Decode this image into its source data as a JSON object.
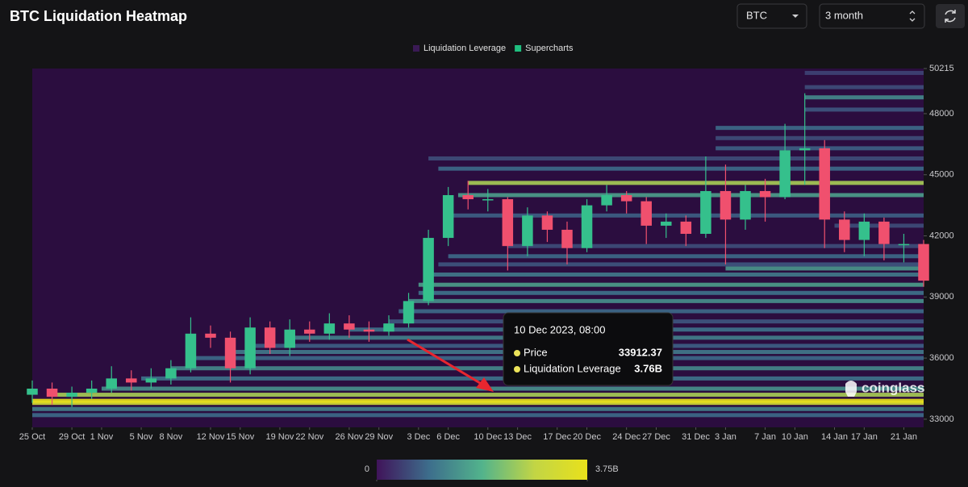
{
  "header": {
    "title": "BTC Liquidation Heatmap",
    "symbol": "BTC",
    "range": "3 month"
  },
  "tooltip": {
    "time": "10 Dec 2023, 08:00",
    "items": [
      {
        "name": "Price",
        "value": 33912.37
      },
      {
        "name": "Liquidation Leverage",
        "value": 3760000000,
        "value_label": "3.76B"
      }
    ]
  },
  "watermark": "coinglass",
  "chart_data": {
    "type": "heatmap",
    "legend": [
      {
        "name": "Liquidation Leverage",
        "color": "#3a1a55"
      },
      {
        "name": "Supercharts",
        "color": "#1fbf7f"
      }
    ],
    "background": "#2b0d3f",
    "xlim": [
      "25 Oct",
      "23 Jan"
    ],
    "xticks": [
      "25 Oct",
      "29 Oct",
      "1 Nov",
      "5 Nov",
      "8 Nov",
      "12 Nov",
      "15 Nov",
      "19 Nov",
      "22 Nov",
      "26 Nov",
      "29 Nov",
      "3 Dec",
      "6 Dec",
      "10 Dec",
      "13 Dec",
      "17 Dec",
      "20 Dec",
      "24 Dec",
      "27 Dec",
      "31 Dec",
      "3 Jan",
      "7 Jan",
      "10 Jan",
      "14 Jan",
      "17 Jan",
      "21 Jan"
    ],
    "ylim": [
      32600,
      50215
    ],
    "yticks": [
      33000,
      36000,
      39000,
      42000,
      45000,
      48000,
      50215
    ],
    "colorscale": [
      "#40145a",
      "#3d6e8c",
      "#52b38c",
      "#c2d545",
      "#e9e11b"
    ],
    "colorbar": {
      "ticks": [
        0,
        {
          "value": 3750000000,
          "label": "3.75B"
        }
      ]
    },
    "heatmap": {
      "price": [
        33200,
        33500,
        33800,
        33900,
        34200,
        34500,
        35000,
        35500,
        36000,
        36300,
        36600,
        37000,
        37400,
        37800,
        38300,
        38800,
        39200,
        39600,
        40100,
        40400,
        40600,
        41000,
        41500,
        42500,
        43000,
        44000,
        44600,
        45300,
        45800,
        46300,
        46800,
        47300,
        48200,
        48800,
        49300,
        50000
      ],
      "from": [
        "25 Oct",
        "25 Oct",
        "25 Oct",
        "25 Oct",
        "27 Oct",
        "1 Nov",
        "5 Nov",
        "8 Nov",
        "10 Nov",
        "14 Nov",
        "16 Nov",
        "20 Nov",
        "26 Nov",
        "30 Nov",
        "1 Dec",
        "2 Dec",
        "3 Dec",
        "3 Dec",
        "4 Dec",
        "3 Jan",
        "5 Dec",
        "6 Dec",
        "12 Dec",
        "14 Jan",
        "6 Dec",
        "7 Dec",
        "8 Dec",
        "5 Dec",
        "4 Dec",
        "2 Jan",
        "2 Jan",
        "2 Jan",
        "11 Jan",
        "11 Jan",
        "11 Jan",
        "11 Jan"
      ],
      "value": [
        900000000,
        1200000000,
        3200000000,
        3700000000,
        2600000000,
        1400000000,
        1000000000,
        1300000000,
        900000000,
        1100000000,
        800000000,
        1200000000,
        1000000000,
        700000000,
        900000000,
        1400000000,
        1000000000,
        1600000000,
        1100000000,
        1500000000,
        700000000,
        900000000,
        600000000,
        600000000,
        800000000,
        1600000000,
        2600000000,
        900000000,
        600000000,
        800000000,
        600000000,
        900000000,
        700000000,
        1300000000,
        600000000,
        500000000
      ]
    },
    "candles": {
      "up_color": "#35c08c",
      "down_color": "#f0506e",
      "x": [
        "25 Oct",
        "27 Oct",
        "29 Oct",
        "31 Oct",
        "2 Nov",
        "4 Nov",
        "6 Nov",
        "8 Nov",
        "10 Nov",
        "12 Nov",
        "14 Nov",
        "16 Nov",
        "18 Nov",
        "20 Nov",
        "22 Nov",
        "24 Nov",
        "26 Nov",
        "28 Nov",
        "30 Nov",
        "2 Dec",
        "4 Dec",
        "6 Dec",
        "8 Dec",
        "10 Dec",
        "12 Dec",
        "14 Dec",
        "16 Dec",
        "18 Dec",
        "20 Dec",
        "22 Dec",
        "24 Dec",
        "26 Dec",
        "28 Dec",
        "30 Dec",
        "1 Jan",
        "3 Jan",
        "5 Jan",
        "7 Jan",
        "9 Jan",
        "11 Jan",
        "13 Jan",
        "15 Jan",
        "17 Jan",
        "19 Jan",
        "21 Jan",
        "23 Jan"
      ],
      "open": [
        34200,
        34500,
        34100,
        34300,
        34500,
        35000,
        34800,
        35000,
        35500,
        37200,
        37000,
        35500,
        37500,
        36500,
        37400,
        37200,
        37700,
        37400,
        37300,
        37700,
        38800,
        41900,
        44000,
        43800,
        43800,
        41500,
        43000,
        42300,
        41400,
        43500,
        44000,
        43700,
        42500,
        42700,
        42100,
        44200,
        42800,
        44200,
        43900,
        46200,
        46300,
        42800,
        41800,
        42700,
        41600,
        41600
      ],
      "high": [
        34900,
        34800,
        34600,
        34900,
        35600,
        35400,
        35500,
        35900,
        38000,
        37600,
        37300,
        38000,
        37800,
        37900,
        37800,
        38200,
        38100,
        37800,
        38100,
        39200,
        42300,
        44400,
        44700,
        44300,
        43900,
        43400,
        43200,
        42700,
        43800,
        44500,
        44200,
        43900,
        43100,
        43000,
        45900,
        45500,
        44500,
        44800,
        47500,
        49000,
        46700,
        43200,
        43100,
        42900,
        42100,
        41800
      ],
      "low": [
        33800,
        33700,
        33600,
        34000,
        34300,
        34400,
        34500,
        34700,
        35300,
        36500,
        34800,
        35200,
        36200,
        36100,
        36800,
        36900,
        37000,
        36800,
        37100,
        37500,
        38600,
        41500,
        43300,
        43200,
        40300,
        41000,
        41700,
        40600,
        41200,
        43200,
        43100,
        41600,
        41900,
        41500,
        41900,
        40600,
        42300,
        42700,
        43800,
        44500,
        41400,
        41200,
        41000,
        40800,
        40700,
        39500
      ],
      "close": [
        34500,
        34100,
        34300,
        34500,
        35000,
        34800,
        35000,
        35500,
        37200,
        37000,
        35500,
        37500,
        36500,
        37400,
        37200,
        37700,
        37400,
        37300,
        37700,
        38800,
        41900,
        44000,
        43800,
        43800,
        41500,
        43000,
        42300,
        41400,
        43500,
        44000,
        43700,
        42500,
        42700,
        42100,
        44200,
        42800,
        44200,
        43900,
        46200,
        46300,
        42800,
        41800,
        42700,
        41600,
        41600,
        39800
      ]
    }
  }
}
